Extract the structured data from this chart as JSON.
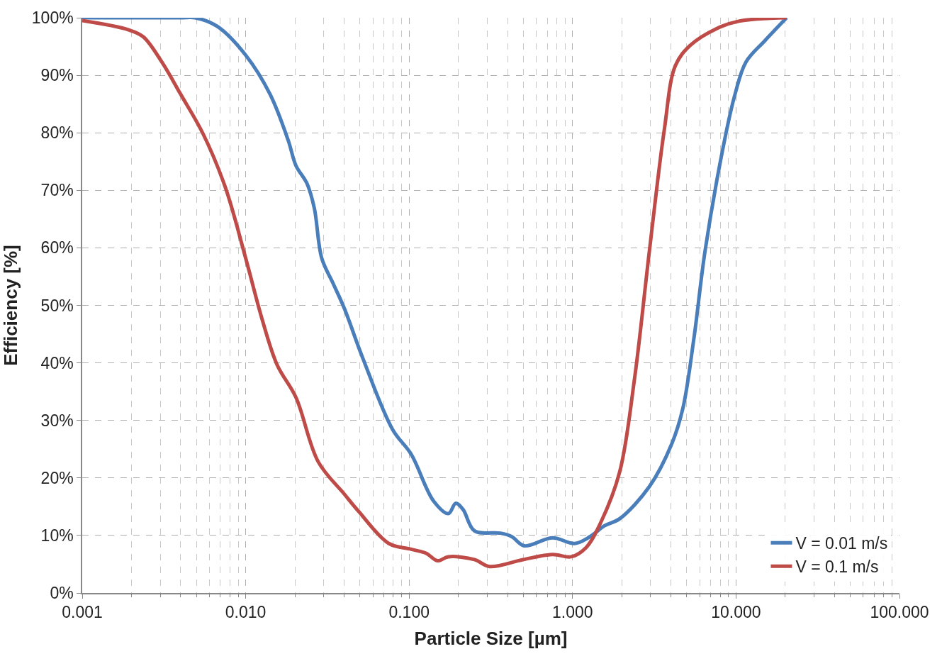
{
  "chart_data": {
    "type": "line",
    "xlabel": "Particle Size [µm]",
    "ylabel": "Efficiency [%]",
    "log": "x",
    "xlim": [
      0.001,
      100
    ],
    "xticks": [
      {
        "value": 0.001,
        "label": "0.001"
      },
      {
        "value": 0.01,
        "label": "0.010"
      },
      {
        "value": 0.1,
        "label": "0.100"
      },
      {
        "value": 1,
        "label": "1.000"
      },
      {
        "value": 10,
        "label": "10.000"
      },
      {
        "value": 100,
        "label": "100.000"
      }
    ],
    "ylim": [
      0,
      100
    ],
    "yticks": [
      {
        "value": 0,
        "label": "0%"
      },
      {
        "value": 10,
        "label": "10%"
      },
      {
        "value": 20,
        "label": "20%"
      },
      {
        "value": 30,
        "label": "30%"
      },
      {
        "value": 40,
        "label": "40%"
      },
      {
        "value": 50,
        "label": "50%"
      },
      {
        "value": 60,
        "label": "60%"
      },
      {
        "value": 70,
        "label": "70%"
      },
      {
        "value": 80,
        "label": "80%"
      },
      {
        "value": 90,
        "label": "90%"
      },
      {
        "value": 100,
        "label": "100%"
      }
    ],
    "grid": true,
    "legend": "bottom right",
    "marker": "none",
    "line_style": "solid",
    "series": [
      {
        "name": "V = 0.01 m/s",
        "color": "#4a7ebb",
        "x": [
          0.001,
          0.004,
          0.0049,
          0.0067,
          0.01,
          0.0141,
          0.0182,
          0.0203,
          0.0237,
          0.0263,
          0.0292,
          0.0343,
          0.0401,
          0.0521,
          0.0793,
          0.103,
          0.141,
          0.174,
          0.193,
          0.214,
          0.251,
          0.362,
          0.424,
          0.507,
          0.754,
          1.03,
          1.28,
          1.57,
          1.94,
          2.95,
          4.04,
          4.73,
          5.54,
          6.46,
          8.41,
          9.86,
          11.5,
          15,
          20.4
        ],
        "values": [
          100,
          100,
          100,
          98.5,
          93.5,
          86.7,
          78.7,
          74.3,
          71.2,
          66.9,
          58.2,
          53.8,
          49.5,
          40.8,
          28.4,
          24.1,
          16,
          13.8,
          15.6,
          14.5,
          10.8,
          10.4,
          9.8,
          8.2,
          9.6,
          8.6,
          9.8,
          11.7,
          12.9,
          18.5,
          25.9,
          32.1,
          44.5,
          59.4,
          78,
          86.7,
          92.3,
          96,
          100
        ]
      },
      {
        "name": "V = 0.1 m/s",
        "color": "#be4b48",
        "x": [
          0.001,
          0.00192,
          0.00236,
          0.00307,
          0.004,
          0.00547,
          0.00749,
          0.01,
          0.0126,
          0.0156,
          0.0203,
          0.0278,
          0.0401,
          0.0494,
          0.0752,
          0.103,
          0.127,
          0.149,
          0.174,
          0.251,
          0.31,
          0.497,
          0.754,
          0.982,
          1.21,
          1.49,
          1.94,
          2.39,
          2.95,
          3.64,
          4.26,
          5.25,
          7.59,
          10.4,
          20.4
        ],
        "values": [
          99.5,
          97.9,
          96.7,
          92.3,
          86.7,
          79.9,
          70.6,
          58.2,
          47.6,
          39.6,
          34,
          22.8,
          17.2,
          14.1,
          8.6,
          7.6,
          6.9,
          5.6,
          6.3,
          5.8,
          4.6,
          5.8,
          6.7,
          6.3,
          7.9,
          12.3,
          21,
          37.1,
          59.4,
          80.5,
          91.7,
          95.2,
          98.1,
          99.4,
          100
        ]
      }
    ]
  }
}
